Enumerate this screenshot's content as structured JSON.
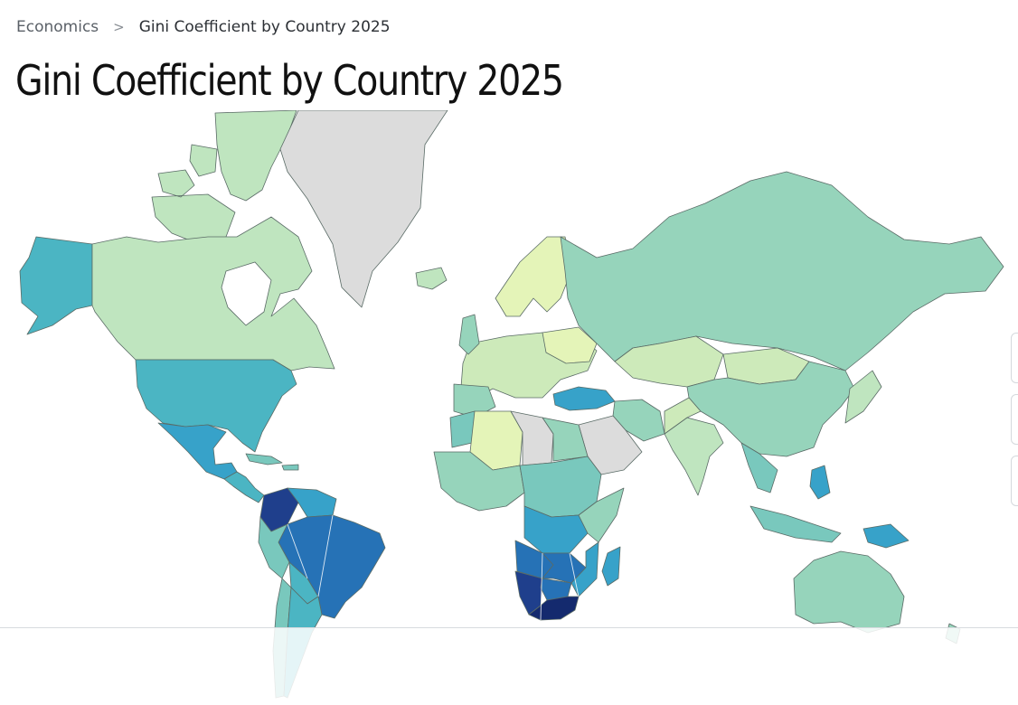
{
  "breadcrumb": {
    "parent": "Economics",
    "separator": ">",
    "current": "Gini Coefficient by Country 2025"
  },
  "title": "Gini Coefficient by Country 2025",
  "palette": {
    "no_data": "#dcdcdc",
    "very_low": "#e4f4b8",
    "low": "#cdeaba",
    "low_mid": "#bfe5bf",
    "mid": "#96d4bb",
    "mid_high": "#79c8bd",
    "high": "#4bb5c3",
    "higher": "#37a2c9",
    "very_high": "#2672b6",
    "highest": "#1f3f8c",
    "extreme": "#142a6e"
  },
  "map_regions": [
    {
      "name": "greenland",
      "class": "no_data"
    },
    {
      "name": "canada",
      "class": "low_mid"
    },
    {
      "name": "alaska",
      "class": "high"
    },
    {
      "name": "usa",
      "class": "high"
    },
    {
      "name": "mexico",
      "class": "higher"
    },
    {
      "name": "brazil",
      "class": "very_high"
    },
    {
      "name": "south-africa",
      "class": "extreme"
    },
    {
      "name": "russia",
      "class": "mid"
    },
    {
      "name": "china",
      "class": "mid"
    },
    {
      "name": "australia",
      "class": "mid"
    },
    {
      "name": "europe",
      "class": "very_low"
    },
    {
      "name": "turkey",
      "class": "higher"
    }
  ]
}
